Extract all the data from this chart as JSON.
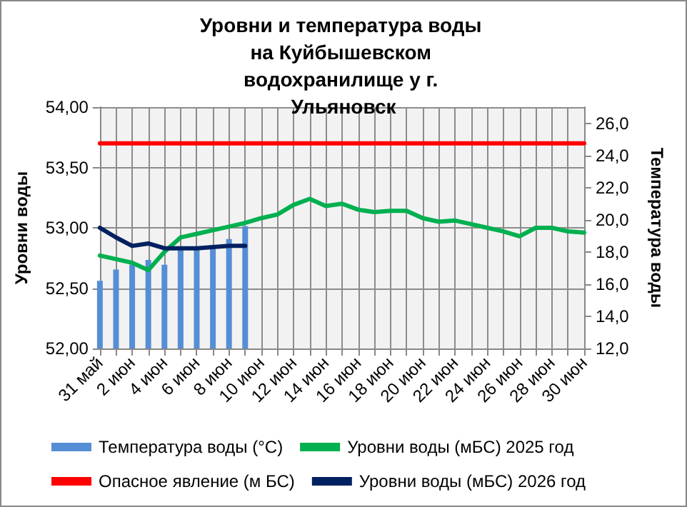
{
  "chart_data": {
    "type": "line",
    "title": "Уровни и температура воды на Куйбышевском водохранилище у г. Ульяновск",
    "ylabel": "Уровни воды",
    "y2label": "Температура воды",
    "categories": [
      "31 май",
      null,
      "2 июн",
      null,
      "4 июн",
      null,
      "6 июн",
      null,
      "8 июн",
      null,
      "10 июн",
      null,
      "12 июн",
      null,
      "14 июн",
      null,
      "16 июн",
      null,
      "18 июн",
      null,
      "20 июн",
      null,
      "22 июн",
      null,
      "24 июн",
      null,
      "26 июн",
      null,
      "28 июн",
      null,
      "30 июн"
    ],
    "series": [
      {
        "name": "Температура воды (°C)",
        "type": "bar",
        "axis": "y2",
        "color": "#558ed5",
        "values": [
          16.2,
          16.9,
          17.2,
          17.5,
          17.2,
          18.2,
          18.2,
          18.4,
          18.8,
          19.6,
          null,
          null,
          null,
          null,
          null,
          null,
          null,
          null,
          null,
          null,
          null,
          null,
          null,
          null,
          null,
          null,
          null,
          null,
          null,
          null,
          null
        ]
      },
      {
        "name": "Уровни воды (мБС) 2025 год",
        "color": "#00b050",
        "values": [
          52.77,
          52.74,
          52.71,
          52.65,
          52.8,
          52.92,
          52.95,
          52.98,
          53.01,
          53.04,
          53.08,
          53.11,
          53.19,
          53.24,
          53.18,
          53.2,
          53.15,
          53.13,
          53.14,
          53.14,
          53.08,
          53.05,
          53.06,
          53.03,
          53.0,
          52.97,
          52.93,
          53.0,
          53.0,
          52.97,
          52.96
        ]
      },
      {
        "name": "Опасное явление (м БС)",
        "color": "#ff0000",
        "values": [
          53.7,
          53.7,
          53.7,
          53.7,
          53.7,
          53.7,
          53.7,
          53.7,
          53.7,
          53.7,
          53.7,
          53.7,
          53.7,
          53.7,
          53.7,
          53.7,
          53.7,
          53.7,
          53.7,
          53.7,
          53.7,
          53.7,
          53.7,
          53.7,
          53.7,
          53.7,
          53.7,
          53.7,
          53.7,
          53.7,
          53.7
        ]
      },
      {
        "name": "Уровни воды (мБС) 2026 год",
        "color": "#002060",
        "values": [
          53.0,
          52.92,
          52.85,
          52.87,
          52.83,
          52.83,
          52.83,
          52.84,
          52.85,
          52.85,
          null,
          null,
          null,
          null,
          null,
          null,
          null,
          null,
          null,
          null,
          null,
          null,
          null,
          null,
          null,
          null,
          null,
          null,
          null,
          null,
          null
        ]
      }
    ],
    "ylim": [
      52,
      54
    ],
    "yticks": [
      {
        "value": 52,
        "label": "52,00"
      },
      {
        "value": 52.5,
        "label": "52,50"
      },
      {
        "value": 53,
        "label": "53,00"
      },
      {
        "value": 53.5,
        "label": "53,50"
      },
      {
        "value": 54,
        "label": "54,00"
      }
    ],
    "y2lim": [
      12,
      27
    ],
    "y2ticks": [
      {
        "value": 12,
        "label": "12,0"
      },
      {
        "value": 14,
        "label": "14,0"
      },
      {
        "value": 16,
        "label": "16,0"
      },
      {
        "value": 18,
        "label": "18,0"
      },
      {
        "value": 20,
        "label": "20,0"
      },
      {
        "value": 22,
        "label": "22,0"
      },
      {
        "value": 24,
        "label": "24,0"
      },
      {
        "value": 26,
        "label": "26,0"
      }
    ],
    "grid": true,
    "legend": "bottom",
    "marker": "none",
    "line_style": "solid"
  }
}
